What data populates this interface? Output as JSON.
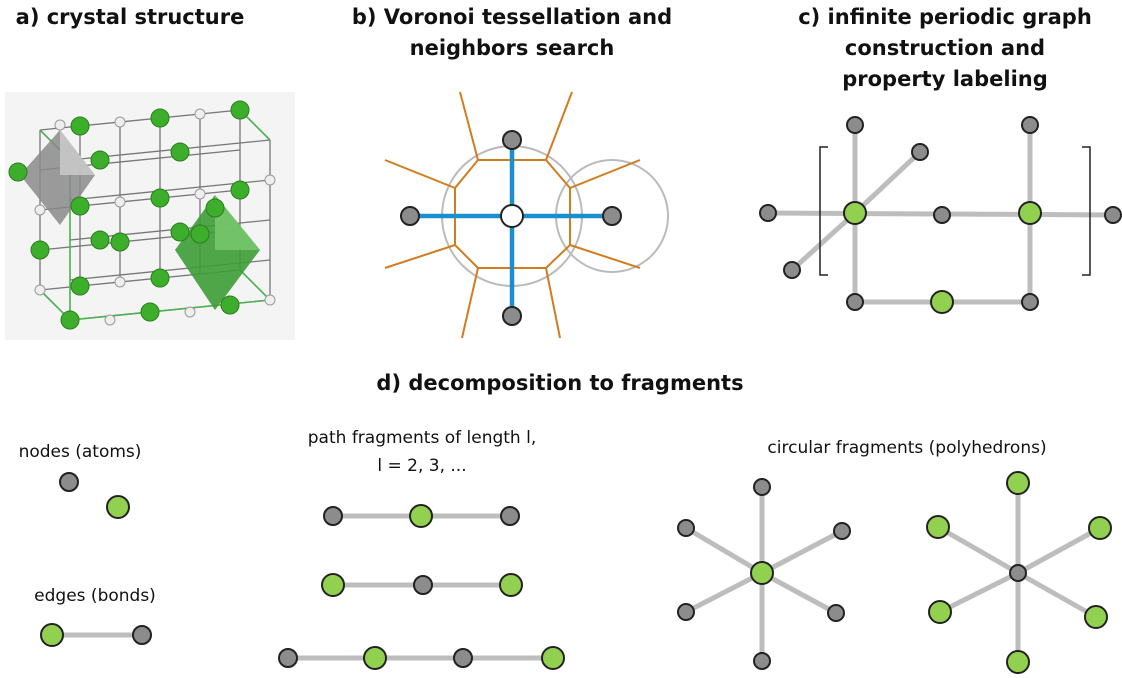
{
  "panels": {
    "a": {
      "title": "a) crystal structure"
    },
    "b": {
      "title": [
        "b) Voronoi tessellation and",
        "neighbors search"
      ]
    },
    "c": {
      "title": [
        "c) infinite periodic graph",
        "construction and",
        "property labeling"
      ]
    },
    "d": {
      "title": "d) decomposition to fragments",
      "nodes_label": "nodes (atoms)",
      "edges_label": "edges (bonds)",
      "path_label": [
        "path fragments of length l,",
        "l = 2, 3, ..."
      ],
      "circular_label": "circular fragments (polyhedrons)"
    }
  }
}
